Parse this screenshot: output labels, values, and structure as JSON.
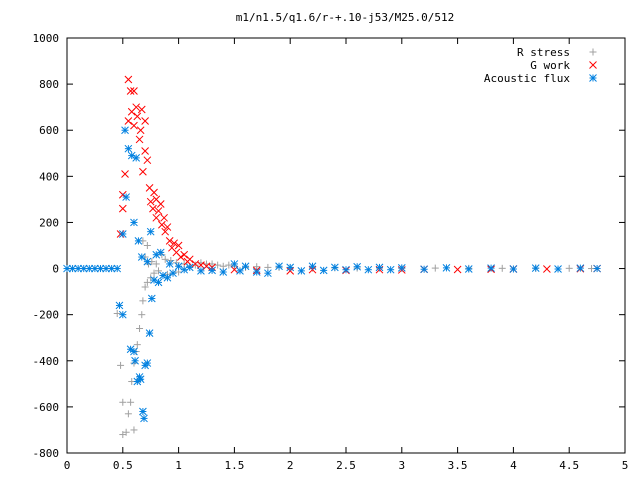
{
  "chart_data": {
    "type": "scatter",
    "title": "m1/n1.5/q1.6/r-+.10-j53/M25.0/512",
    "xlabel": "",
    "ylabel": "",
    "xlim": [
      0,
      5
    ],
    "ylim": [
      -800,
      1000
    ],
    "grid": false,
    "legend_position": "top-right",
    "x_ticks": [
      0,
      0.5,
      1,
      1.5,
      2,
      2.5,
      3,
      3.5,
      4,
      4.5,
      5
    ],
    "x_tick_labels": [
      "0",
      "0.5",
      "1",
      "1.5",
      "2",
      "2.5",
      "3",
      "3.5",
      "4",
      "4.5",
      "5"
    ],
    "y_ticks": [
      -800,
      -600,
      -400,
      -200,
      0,
      200,
      400,
      600,
      800,
      1000
    ],
    "y_tick_labels": [
      "-800",
      "-600",
      "-400",
      "-200",
      "0",
      "200",
      "400",
      "600",
      "800",
      "1000"
    ],
    "series": [
      {
        "name": "R stress",
        "marker": "plus",
        "color": "#a0a0a0",
        "points": [
          [
            0.45,
            -195
          ],
          [
            0.48,
            -420
          ],
          [
            0.5,
            -580
          ],
          [
            0.5,
            -720
          ],
          [
            0.53,
            -710
          ],
          [
            0.55,
            -630
          ],
          [
            0.57,
            -580
          ],
          [
            0.58,
            -490
          ],
          [
            0.6,
            -410
          ],
          [
            0.6,
            -700
          ],
          [
            0.62,
            -360
          ],
          [
            0.63,
            -330
          ],
          [
            0.65,
            -480
          ],
          [
            0.65,
            -260
          ],
          [
            0.67,
            -200
          ],
          [
            0.68,
            -140
          ],
          [
            0.7,
            -80
          ],
          [
            0.7,
            50
          ],
          [
            0.72,
            -60
          ],
          [
            0.73,
            20
          ],
          [
            0.75,
            -40
          ],
          [
            0.76,
            30
          ],
          [
            0.78,
            -20
          ],
          [
            0.8,
            20
          ],
          [
            0.82,
            -10
          ],
          [
            0.85,
            60
          ],
          [
            0.88,
            40
          ],
          [
            0.9,
            -25
          ],
          [
            0.93,
            35
          ],
          [
            0.95,
            -20
          ],
          [
            0.98,
            25
          ],
          [
            1.0,
            -15
          ],
          [
            1.05,
            20
          ],
          [
            1.1,
            10
          ],
          [
            1.15,
            15
          ],
          [
            1.2,
            25
          ],
          [
            1.25,
            20
          ],
          [
            1.3,
            20
          ],
          [
            1.35,
            15
          ],
          [
            1.4,
            10
          ],
          [
            1.45,
            15
          ],
          [
            1.5,
            10
          ],
          [
            1.6,
            5
          ],
          [
            1.7,
            8
          ],
          [
            1.8,
            5
          ],
          [
            1.9,
            5
          ],
          [
            2.0,
            3
          ],
          [
            2.2,
            2
          ],
          [
            2.4,
            3
          ],
          [
            2.6,
            2
          ],
          [
            2.8,
            2
          ],
          [
            3.0,
            1
          ],
          [
            3.3,
            2
          ],
          [
            3.6,
            1
          ],
          [
            3.9,
            1
          ],
          [
            4.2,
            1
          ],
          [
            4.5,
            1
          ],
          [
            4.7,
            0
          ],
          [
            0.68,
            120
          ],
          [
            0.72,
            100
          ]
        ]
      },
      {
        "name": "G work",
        "marker": "cross",
        "color": "#ff0000",
        "points": [
          [
            0.48,
            150
          ],
          [
            0.5,
            260
          ],
          [
            0.5,
            320
          ],
          [
            0.52,
            410
          ],
          [
            0.55,
            640
          ],
          [
            0.55,
            820
          ],
          [
            0.57,
            770
          ],
          [
            0.58,
            680
          ],
          [
            0.6,
            770
          ],
          [
            0.6,
            620
          ],
          [
            0.62,
            700
          ],
          [
            0.63,
            660
          ],
          [
            0.65,
            560
          ],
          [
            0.66,
            600
          ],
          [
            0.67,
            690
          ],
          [
            0.68,
            420
          ],
          [
            0.7,
            510
          ],
          [
            0.7,
            640
          ],
          [
            0.72,
            470
          ],
          [
            0.74,
            350
          ],
          [
            0.75,
            290
          ],
          [
            0.77,
            260
          ],
          [
            0.78,
            330
          ],
          [
            0.8,
            300
          ],
          [
            0.8,
            220
          ],
          [
            0.82,
            250
          ],
          [
            0.84,
            280
          ],
          [
            0.85,
            190
          ],
          [
            0.87,
            220
          ],
          [
            0.88,
            160
          ],
          [
            0.9,
            180
          ],
          [
            0.92,
            120
          ],
          [
            0.94,
            90
          ],
          [
            0.96,
            110
          ],
          [
            0.98,
            70
          ],
          [
            1.0,
            100
          ],
          [
            1.02,
            50
          ],
          [
            1.05,
            60
          ],
          [
            1.08,
            30
          ],
          [
            1.1,
            40
          ],
          [
            1.15,
            20
          ],
          [
            1.2,
            15
          ],
          [
            1.25,
            10
          ],
          [
            1.3,
            5
          ],
          [
            1.5,
            -5
          ],
          [
            1.7,
            -8
          ],
          [
            2.0,
            -10
          ],
          [
            2.2,
            -5
          ],
          [
            2.5,
            -8
          ],
          [
            2.8,
            -5
          ],
          [
            3.0,
            -6
          ],
          [
            3.2,
            -3
          ],
          [
            3.5,
            -4
          ],
          [
            3.8,
            -3
          ],
          [
            4.0,
            -2
          ],
          [
            4.3,
            -2
          ],
          [
            4.6,
            -1
          ],
          [
            4.75,
            0
          ]
        ]
      },
      {
        "name": "Acoustic flux",
        "marker": "star",
        "color": "#0080e0",
        "points": [
          [
            0.0,
            0
          ],
          [
            0.05,
            0
          ],
          [
            0.1,
            0
          ],
          [
            0.15,
            0
          ],
          [
            0.2,
            0
          ],
          [
            0.25,
            0
          ],
          [
            0.3,
            0
          ],
          [
            0.35,
            0
          ],
          [
            0.4,
            0
          ],
          [
            0.45,
            0
          ],
          [
            0.47,
            -160
          ],
          [
            0.5,
            -200
          ],
          [
            0.5,
            150
          ],
          [
            0.52,
            600
          ],
          [
            0.53,
            310
          ],
          [
            0.55,
            520
          ],
          [
            0.57,
            -350
          ],
          [
            0.58,
            490
          ],
          [
            0.6,
            -360
          ],
          [
            0.61,
            -400
          ],
          [
            0.63,
            -490
          ],
          [
            0.65,
            -470
          ],
          [
            0.66,
            -480
          ],
          [
            0.68,
            -620
          ],
          [
            0.69,
            -650
          ],
          [
            0.7,
            -420
          ],
          [
            0.72,
            -410
          ],
          [
            0.74,
            -280
          ],
          [
            0.76,
            -130
          ],
          [
            0.78,
            -50
          ],
          [
            0.8,
            60
          ],
          [
            0.82,
            -60
          ],
          [
            0.84,
            70
          ],
          [
            0.86,
            -30
          ],
          [
            0.9,
            -40
          ],
          [
            0.92,
            20
          ],
          [
            0.95,
            -20
          ],
          [
            1.0,
            10
          ],
          [
            1.05,
            -5
          ],
          [
            1.1,
            5
          ],
          [
            1.2,
            -10
          ],
          [
            1.3,
            -8
          ],
          [
            1.4,
            -15
          ],
          [
            1.5,
            20
          ],
          [
            1.55,
            -10
          ],
          [
            1.6,
            10
          ],
          [
            1.7,
            -15
          ],
          [
            1.8,
            -20
          ],
          [
            1.9,
            10
          ],
          [
            2.0,
            5
          ],
          [
            2.1,
            -10
          ],
          [
            2.2,
            10
          ],
          [
            2.3,
            -8
          ],
          [
            2.4,
            5
          ],
          [
            2.5,
            -5
          ],
          [
            2.6,
            8
          ],
          [
            2.7,
            -5
          ],
          [
            2.8,
            5
          ],
          [
            2.9,
            -5
          ],
          [
            3.0,
            3
          ],
          [
            3.2,
            -3
          ],
          [
            3.4,
            3
          ],
          [
            3.6,
            -2
          ],
          [
            3.8,
            2
          ],
          [
            4.0,
            -2
          ],
          [
            4.2,
            2
          ],
          [
            4.4,
            -2
          ],
          [
            4.6,
            2
          ],
          [
            4.75,
            0
          ],
          [
            0.6,
            200
          ],
          [
            0.62,
            480
          ],
          [
            0.64,
            120
          ],
          [
            0.67,
            50
          ],
          [
            0.72,
            30
          ],
          [
            0.75,
            160
          ]
        ]
      }
    ]
  }
}
